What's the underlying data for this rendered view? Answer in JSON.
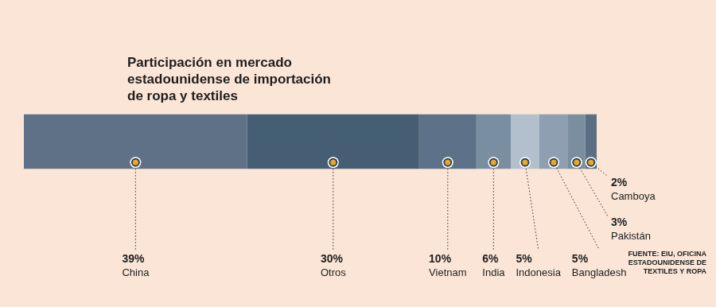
{
  "chart_data": {
    "type": "bar",
    "orientation": "horizontal",
    "stacked": true,
    "title": [
      "Participación en mercado",
      "estadounidense de importación",
      "de ropa y textiles"
    ],
    "categories": [
      "China",
      "Otros",
      "Vietnam",
      "India",
      "Indonesia",
      "Bangladesh",
      "Pakistán",
      "Camboya"
    ],
    "values": [
      39,
      30,
      10,
      6,
      5,
      5,
      3,
      2
    ],
    "value_labels": [
      "39%",
      "30%",
      "10%",
      "6%",
      "5%",
      "5%",
      "3%",
      "2%"
    ],
    "data_labels": true,
    "colors": [
      "#5f7186",
      "#465e73",
      "#5d7288",
      "#7a8ea2",
      "#b2bfcc",
      "#8d9fb0",
      "#7a8ea0",
      "#5b6f84"
    ],
    "xlim": [
      0,
      100
    ],
    "tick_labels": false,
    "grid": false,
    "annotations": [
      "FUENTE: EIU, OFICINA ESTADOUNIDENSE DE TEXTILES Y ROPA"
    ]
  }
}
